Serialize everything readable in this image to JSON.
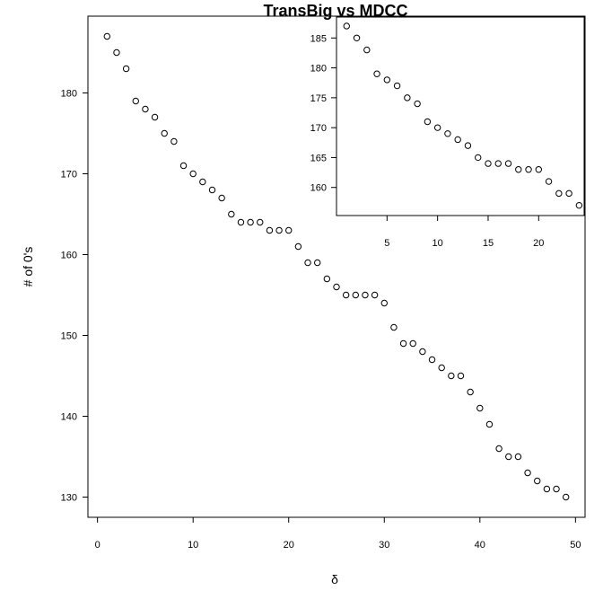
{
  "chart_data": [
    {
      "id": "main",
      "type": "scatter",
      "title": "TransBig vs MDCC",
      "xlabel": "δ",
      "ylabel": "# of 0's",
      "xlim": [
        -1,
        51
      ],
      "ylim": [
        127.5,
        189.5
      ],
      "xticks": [
        0,
        10,
        20,
        30,
        40,
        50
      ],
      "yticks": [
        130,
        140,
        150,
        160,
        170,
        180
      ],
      "x": [
        1,
        2,
        3,
        4,
        5,
        6,
        7,
        8,
        9,
        10,
        11,
        12,
        13,
        14,
        15,
        16,
        17,
        18,
        19,
        20,
        21,
        22,
        23,
        24,
        25,
        26,
        27,
        28,
        29,
        30,
        31,
        32,
        33,
        34,
        35,
        36,
        37,
        38,
        39,
        40,
        41,
        42,
        43,
        44,
        45,
        46,
        47,
        48,
        49
      ],
      "y": [
        187,
        185,
        183,
        179,
        178,
        177,
        175,
        174,
        171,
        170,
        169,
        168,
        167,
        165,
        164,
        164,
        164,
        163,
        163,
        163,
        161,
        159,
        159,
        157,
        156,
        155,
        155,
        155,
        155,
        154,
        151,
        149,
        149,
        148,
        147,
        146,
        145,
        145,
        143,
        141,
        139,
        136,
        135,
        135,
        133,
        132,
        131,
        131,
        130
      ],
      "marker": "open-circle",
      "grid": false
    },
    {
      "id": "inset",
      "type": "scatter",
      "title": "",
      "xlabel": "",
      "ylabel": "",
      "xlim": [
        0,
        24.5
      ],
      "ylim": [
        155.3,
        188.5
      ],
      "xticks": [
        5,
        10,
        15,
        20
      ],
      "yticks": [
        160,
        165,
        170,
        175,
        180,
        185
      ],
      "x": [
        1,
        2,
        3,
        4,
        5,
        6,
        7,
        8,
        9,
        10,
        11,
        12,
        13,
        14,
        15,
        16,
        17,
        18,
        19,
        20,
        21,
        22,
        23,
        24
      ],
      "y": [
        187,
        185,
        183,
        179,
        178,
        177,
        175,
        174,
        171,
        170,
        169,
        168,
        167,
        165,
        164,
        164,
        164,
        163,
        163,
        163,
        161,
        159,
        159,
        157
      ],
      "marker": "open-circle",
      "grid": false
    }
  ]
}
